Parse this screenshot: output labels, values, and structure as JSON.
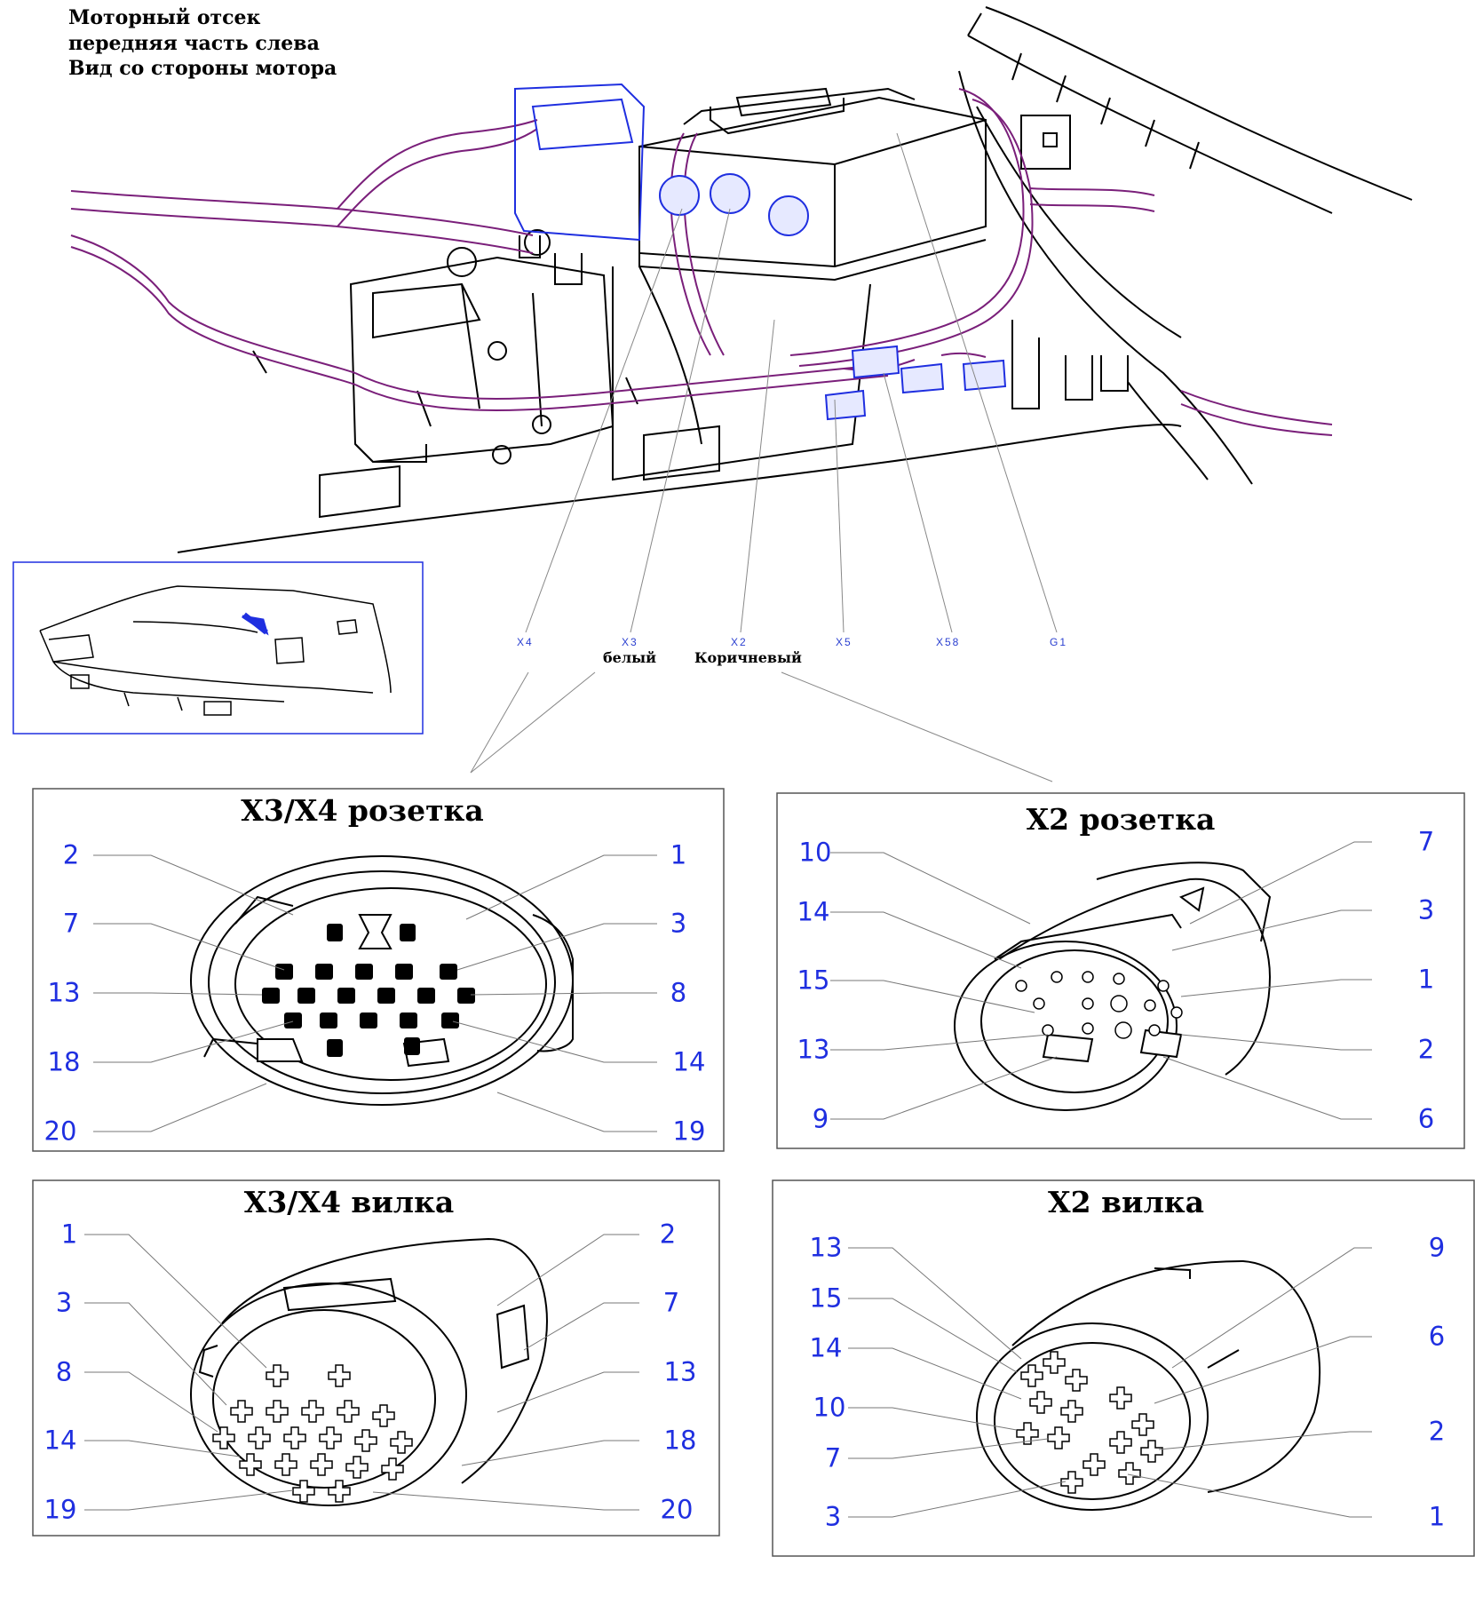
{
  "header": {
    "line1": "Моторный отсек",
    "line2": "передняя часть слева",
    "line3": "Вид со стороны мотора"
  },
  "callouts": {
    "x4": "X4",
    "x3": "X3",
    "x3_sub": "белый",
    "x2": "X2",
    "x2_sub": "Коричневый",
    "x5": "X5",
    "x58": "X58",
    "g1": "G1"
  },
  "colors": {
    "harness": "#7a1f7a",
    "connector": "#1f2fe0",
    "pin_label": "#1f2fe0",
    "line_art": "#000000"
  },
  "panels": {
    "x3x4_socket": {
      "title": "X3/X4 розетка",
      "pins": [
        "2",
        "1",
        "7",
        "3",
        "13",
        "8",
        "18",
        "14",
        "20",
        "19"
      ]
    },
    "x2_socket": {
      "title": "X2 розетка",
      "pins": [
        "10",
        "7",
        "14",
        "3",
        "15",
        "1",
        "13",
        "2",
        "9",
        "6"
      ]
    },
    "x3x4_plug": {
      "title": "X3/X4 вилка",
      "pins": [
        "1",
        "2",
        "3",
        "7",
        "8",
        "13",
        "14",
        "18",
        "19",
        "20"
      ]
    },
    "x2_plug": {
      "title": "X2 вилка",
      "pins": [
        "13",
        "9",
        "15",
        "6",
        "14",
        "10",
        "2",
        "7",
        "3",
        "1"
      ]
    }
  }
}
